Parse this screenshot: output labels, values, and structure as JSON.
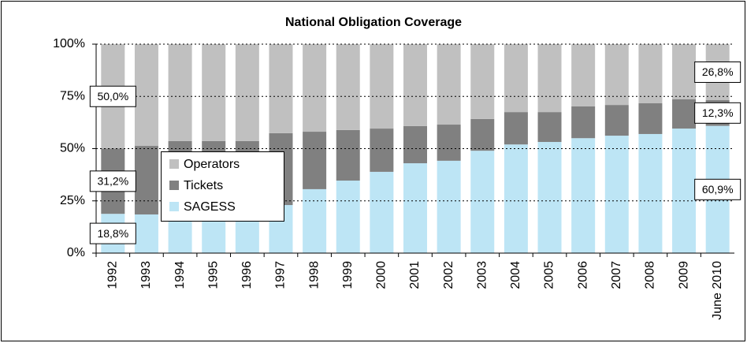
{
  "chart_data": {
    "type": "stacked_bar",
    "title": "National Obligation Coverage",
    "categories": [
      "1992",
      "1993",
      "1994",
      "1995",
      "1996",
      "1997",
      "1998",
      "1999",
      "2000",
      "2001",
      "2002",
      "2003",
      "2004",
      "2005",
      "2006",
      "2007",
      "2008",
      "2009",
      "June 2010"
    ],
    "series": [
      {
        "name": "SAGESS",
        "color": "#bde5f5",
        "values": [
          18.8,
          18.5,
          19,
          19.5,
          20,
          23,
          30.6,
          34.7,
          38.9,
          43,
          44.2,
          49,
          52,
          53.2,
          55,
          56.2,
          57,
          59.6,
          60.9
        ],
        "value_labels": [
          "18,8%",
          null,
          null,
          null,
          null,
          null,
          null,
          null,
          null,
          null,
          null,
          null,
          null,
          null,
          null,
          null,
          null,
          null,
          "60,9%"
        ]
      },
      {
        "name": "Tickets",
        "color": "#808080",
        "values": [
          31.2,
          32.8,
          34.6,
          34.1,
          33.6,
          34.4,
          27.5,
          24.2,
          20.7,
          17.8,
          17.3,
          15.2,
          15.5,
          14.3,
          15.2,
          14.7,
          14.7,
          14,
          12.3
        ],
        "value_labels": [
          "31,2%",
          null,
          null,
          null,
          null,
          null,
          null,
          null,
          null,
          null,
          null,
          null,
          null,
          null,
          null,
          null,
          null,
          null,
          "12,3%"
        ]
      },
      {
        "name": "Operators",
        "color": "#c0c0c0",
        "values": [
          50,
          48.7,
          46.4,
          46.4,
          46.4,
          42.6,
          41.9,
          41.1,
          40.4,
          39.2,
          38.5,
          35.8,
          32.5,
          32.5,
          29.8,
          29.1,
          28.3,
          26.4,
          26.8
        ],
        "value_labels": [
          "50,0%",
          null,
          null,
          null,
          null,
          null,
          null,
          null,
          null,
          null,
          null,
          null,
          null,
          null,
          null,
          null,
          null,
          null,
          "26,8%"
        ]
      }
    ],
    "ylim": [
      0,
      100
    ],
    "yticks": [
      {
        "value": 0,
        "label": "0%"
      },
      {
        "value": 25,
        "label": "25%"
      },
      {
        "value": 50,
        "label": "50%"
      },
      {
        "value": 75,
        "label": "75%"
      },
      {
        "value": 100,
        "label": "100%"
      }
    ],
    "grid": true
  }
}
